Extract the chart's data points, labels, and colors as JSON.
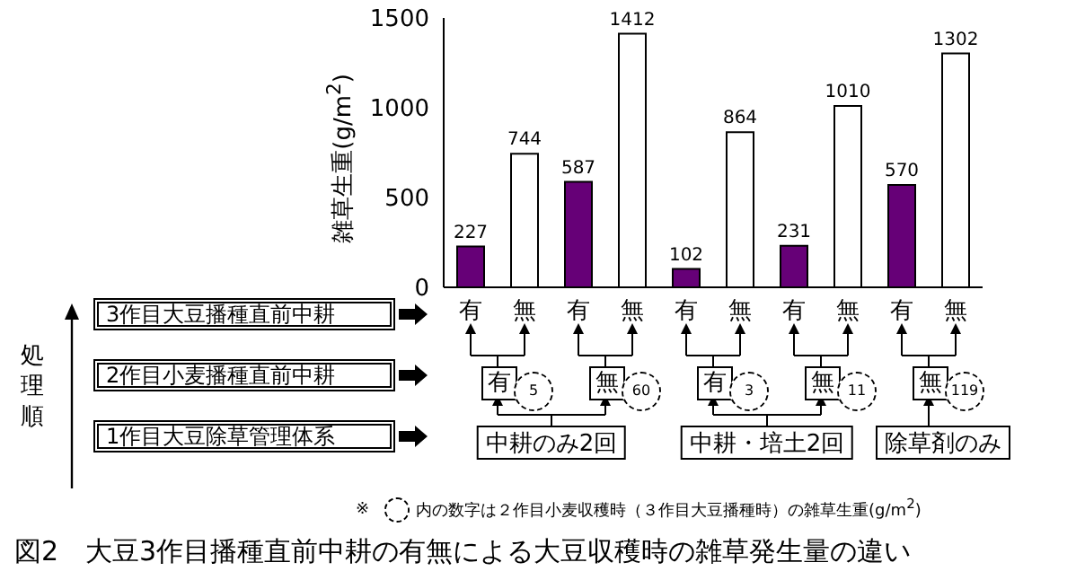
{
  "chart_data": {
    "type": "bar",
    "title": "図2　大豆3作目播種直前中耕の有無による大豆収穫時の雑草発生量の違い",
    "ylabel": "雑草生重(g/m$^{2}$)",
    "categories": [
      "有",
      "無",
      "有",
      "無",
      "有",
      "無",
      "有",
      "無",
      "有",
      "無"
    ],
    "values": [
      227,
      744,
      587,
      1412,
      102,
      864,
      231,
      1010,
      570,
      1302
    ],
    "colors": [
      "#660077",
      "#ffffff",
      "#660077",
      "#ffffff",
      "#660077",
      "#ffffff",
      "#660077",
      "#ffffff",
      "#660077",
      "#ffffff"
    ],
    "ylim": [
      0,
      1500
    ],
    "yticks": [
      0,
      500,
      1000,
      1500
    ],
    "data_labels": true,
    "annotations": [
      "処理順",
      "3作目大豆播種直前中耕",
      "2作目小麦播種直前中耕",
      "1作目大豆除草管理体系",
      "有",
      "無",
      "有",
      "無",
      "無",
      "5",
      "60",
      "3",
      "11",
      "119",
      "中耕のみ2回",
      "中耕・培土2回",
      "除草剤のみ",
      "※",
      "内の数字は２作目小麦収穫時（３作目大豆播種時）の雑草生重(g/m$^{2}$)"
    ]
  }
}
